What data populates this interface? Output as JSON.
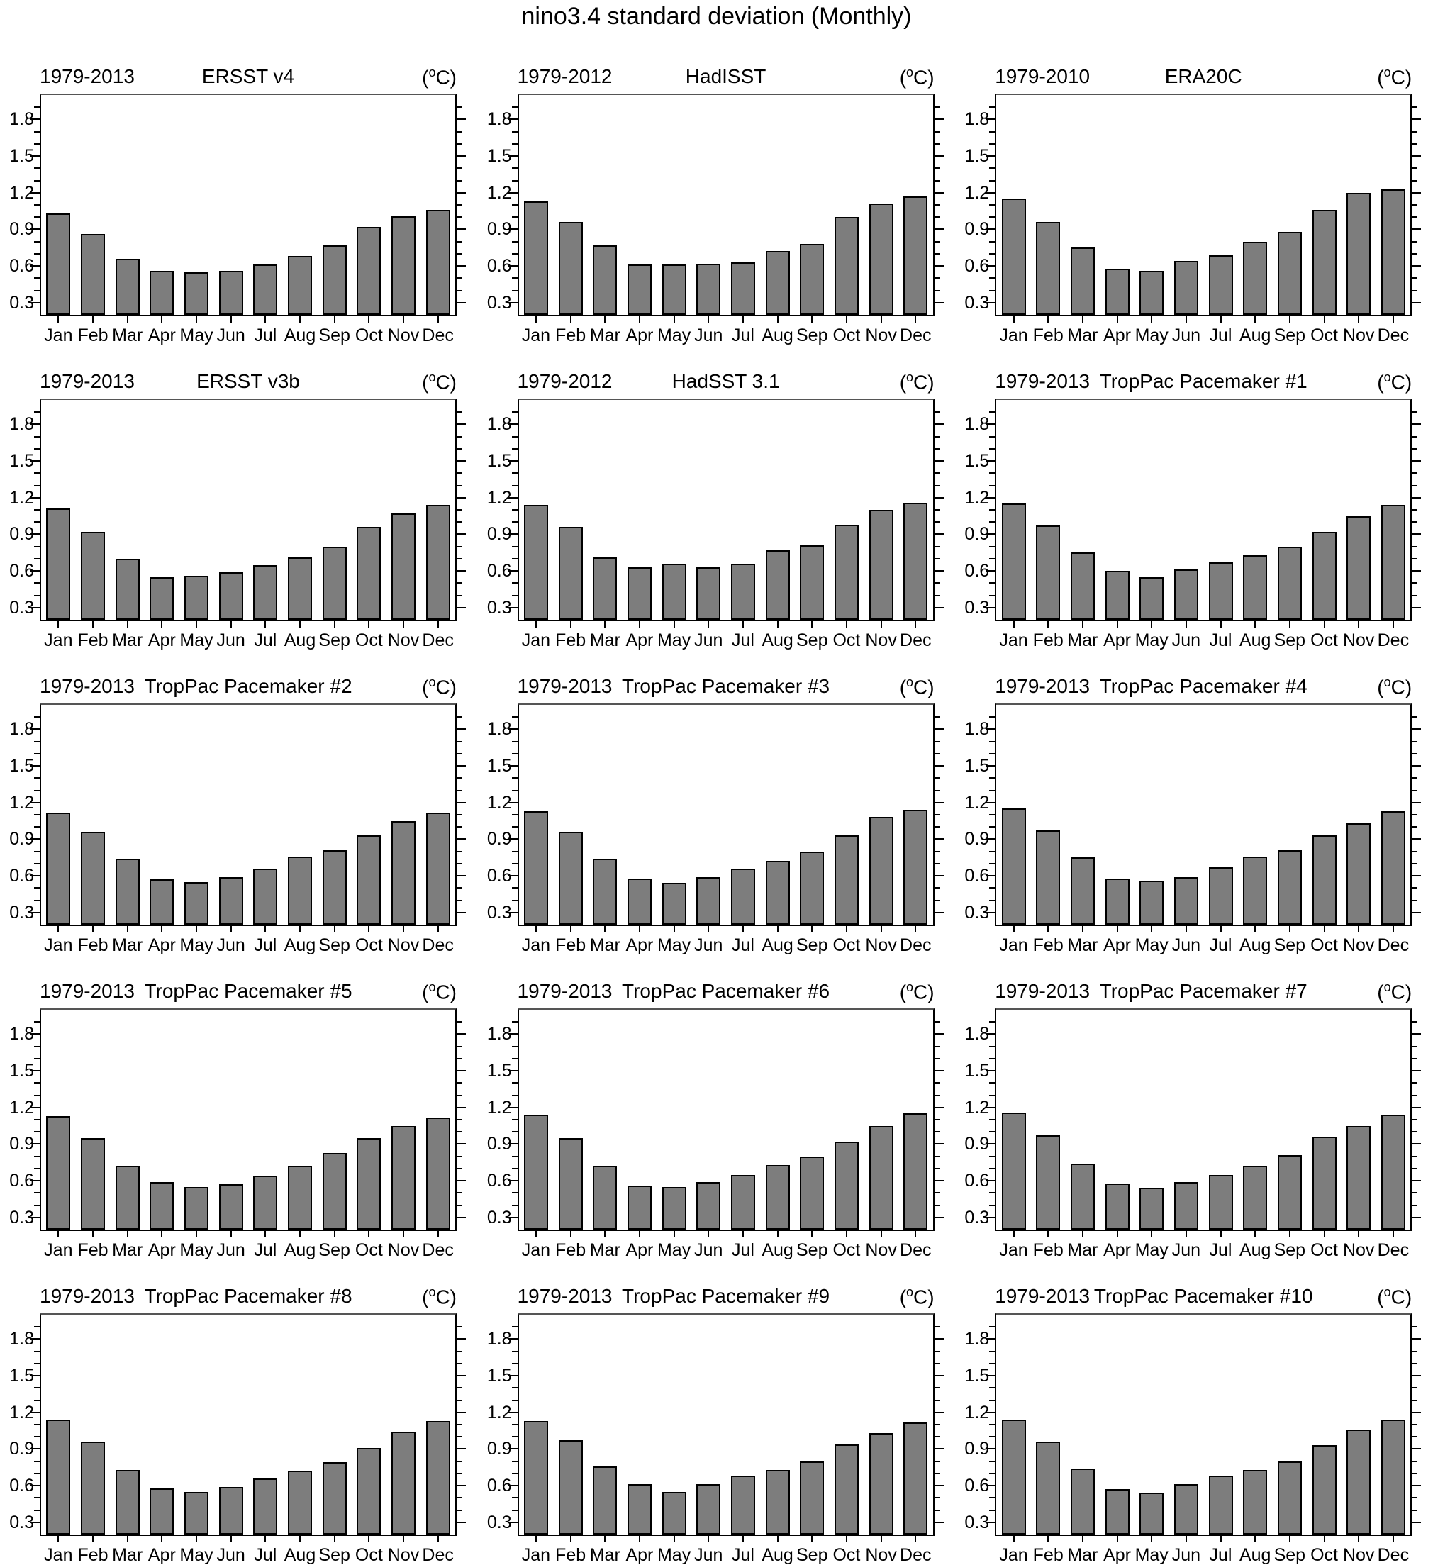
{
  "title": "nino3.4 standard deviation (Monthly)",
  "y_tick_labels": [
    "0.3",
    "0.6",
    "0.9",
    "1.2",
    "1.5",
    "1.8"
  ],
  "bar_color": "#7d7d7d",
  "chart_data": [
    {
      "type": "bar",
      "title": "ERSST v4",
      "period": "1979-2013",
      "units": "(°C)",
      "ylim": [
        0.2,
        2.0
      ],
      "grid": false,
      "categories": [
        "Jan",
        "Feb",
        "Mar",
        "Apr",
        "May",
        "Jun",
        "Jul",
        "Aug",
        "Sep",
        "Oct",
        "Nov",
        "Dec"
      ],
      "values": [
        1.03,
        0.86,
        0.66,
        0.56,
        0.55,
        0.56,
        0.61,
        0.68,
        0.77,
        0.92,
        1.01,
        1.06
      ]
    },
    {
      "type": "bar",
      "title": "HadISST",
      "period": "1979-2012",
      "units": "(°C)",
      "ylim": [
        0.2,
        2.0
      ],
      "grid": false,
      "categories": [
        "Jan",
        "Feb",
        "Mar",
        "Apr",
        "May",
        "Jun",
        "Jul",
        "Aug",
        "Sep",
        "Oct",
        "Nov",
        "Dec"
      ],
      "values": [
        1.13,
        0.96,
        0.77,
        0.61,
        0.61,
        0.62,
        0.63,
        0.72,
        0.78,
        1.0,
        1.11,
        1.17
      ]
    },
    {
      "type": "bar",
      "title": "ERA20C",
      "period": "1979-2010",
      "units": "(°C)",
      "ylim": [
        0.2,
        2.0
      ],
      "grid": false,
      "categories": [
        "Jan",
        "Feb",
        "Mar",
        "Apr",
        "May",
        "Jun",
        "Jul",
        "Aug",
        "Sep",
        "Oct",
        "Nov",
        "Dec"
      ],
      "values": [
        1.15,
        0.96,
        0.75,
        0.58,
        0.56,
        0.64,
        0.69,
        0.8,
        0.88,
        1.06,
        1.2,
        1.23
      ]
    },
    {
      "type": "bar",
      "title": "ERSST v3b",
      "period": "1979-2013",
      "units": "(°C)",
      "ylim": [
        0.2,
        2.0
      ],
      "grid": false,
      "categories": [
        "Jan",
        "Feb",
        "Mar",
        "Apr",
        "May",
        "Jun",
        "Jul",
        "Aug",
        "Sep",
        "Oct",
        "Nov",
        "Dec"
      ],
      "values": [
        1.11,
        0.92,
        0.7,
        0.55,
        0.56,
        0.59,
        0.65,
        0.71,
        0.8,
        0.96,
        1.07,
        1.14
      ]
    },
    {
      "type": "bar",
      "title": "HadSST 3.1",
      "period": "1979-2012",
      "units": "(°C)",
      "ylim": [
        0.2,
        2.0
      ],
      "grid": false,
      "categories": [
        "Jan",
        "Feb",
        "Mar",
        "Apr",
        "May",
        "Jun",
        "Jul",
        "Aug",
        "Sep",
        "Oct",
        "Nov",
        "Dec"
      ],
      "values": [
        1.14,
        0.96,
        0.71,
        0.63,
        0.66,
        0.63,
        0.66,
        0.77,
        0.81,
        0.98,
        1.1,
        1.16
      ]
    },
    {
      "type": "bar",
      "title": "TropPac Pacemaker #1",
      "period": "1979-2013",
      "units": "(°C)",
      "ylim": [
        0.2,
        2.0
      ],
      "grid": false,
      "categories": [
        "Jan",
        "Feb",
        "Mar",
        "Apr",
        "May",
        "Jun",
        "Jul",
        "Aug",
        "Sep",
        "Oct",
        "Nov",
        "Dec"
      ],
      "values": [
        1.15,
        0.97,
        0.75,
        0.6,
        0.55,
        0.61,
        0.67,
        0.73,
        0.8,
        0.92,
        1.05,
        1.14
      ]
    },
    {
      "type": "bar",
      "title": "TropPac Pacemaker #2",
      "period": "1979-2013",
      "units": "(°C)",
      "ylim": [
        0.2,
        2.0
      ],
      "grid": false,
      "categories": [
        "Jan",
        "Feb",
        "Mar",
        "Apr",
        "May",
        "Jun",
        "Jul",
        "Aug",
        "Sep",
        "Oct",
        "Nov",
        "Dec"
      ],
      "values": [
        1.12,
        0.96,
        0.74,
        0.57,
        0.55,
        0.59,
        0.66,
        0.76,
        0.81,
        0.93,
        1.05,
        1.12
      ]
    },
    {
      "type": "bar",
      "title": "TropPac Pacemaker #3",
      "period": "1979-2013",
      "units": "(°C)",
      "ylim": [
        0.2,
        2.0
      ],
      "grid": false,
      "categories": [
        "Jan",
        "Feb",
        "Mar",
        "Apr",
        "May",
        "Jun",
        "Jul",
        "Aug",
        "Sep",
        "Oct",
        "Nov",
        "Dec"
      ],
      "values": [
        1.13,
        0.96,
        0.74,
        0.58,
        0.54,
        0.59,
        0.66,
        0.72,
        0.8,
        0.93,
        1.08,
        1.14
      ]
    },
    {
      "type": "bar",
      "title": "TropPac Pacemaker #4",
      "period": "1979-2013",
      "units": "(°C)",
      "ylim": [
        0.2,
        2.0
      ],
      "grid": false,
      "categories": [
        "Jan",
        "Feb",
        "Mar",
        "Apr",
        "May",
        "Jun",
        "Jul",
        "Aug",
        "Sep",
        "Oct",
        "Nov",
        "Dec"
      ],
      "values": [
        1.15,
        0.97,
        0.75,
        0.58,
        0.56,
        0.59,
        0.67,
        0.76,
        0.81,
        0.93,
        1.03,
        1.13
      ]
    },
    {
      "type": "bar",
      "title": "TropPac Pacemaker #5",
      "period": "1979-2013",
      "units": "(°C)",
      "ylim": [
        0.2,
        2.0
      ],
      "grid": false,
      "categories": [
        "Jan",
        "Feb",
        "Mar",
        "Apr",
        "May",
        "Jun",
        "Jul",
        "Aug",
        "Sep",
        "Oct",
        "Nov",
        "Dec"
      ],
      "values": [
        1.13,
        0.95,
        0.72,
        0.59,
        0.55,
        0.57,
        0.64,
        0.72,
        0.83,
        0.95,
        1.05,
        1.12
      ]
    },
    {
      "type": "bar",
      "title": "TropPac Pacemaker #6",
      "period": "1979-2013",
      "units": "(°C)",
      "ylim": [
        0.2,
        2.0
      ],
      "grid": false,
      "categories": [
        "Jan",
        "Feb",
        "Mar",
        "Apr",
        "May",
        "Jun",
        "Jul",
        "Aug",
        "Sep",
        "Oct",
        "Nov",
        "Dec"
      ],
      "values": [
        1.14,
        0.95,
        0.72,
        0.56,
        0.55,
        0.59,
        0.65,
        0.73,
        0.8,
        0.92,
        1.05,
        1.15
      ]
    },
    {
      "type": "bar",
      "title": "TropPac Pacemaker #7",
      "period": "1979-2013",
      "units": "(°C)",
      "ylim": [
        0.2,
        2.0
      ],
      "grid": false,
      "categories": [
        "Jan",
        "Feb",
        "Mar",
        "Apr",
        "May",
        "Jun",
        "Jul",
        "Aug",
        "Sep",
        "Oct",
        "Nov",
        "Dec"
      ],
      "values": [
        1.16,
        0.97,
        0.74,
        0.58,
        0.54,
        0.59,
        0.65,
        0.72,
        0.81,
        0.96,
        1.05,
        1.14
      ]
    },
    {
      "type": "bar",
      "title": "TropPac Pacemaker #8",
      "period": "1979-2013",
      "units": "(°C)",
      "ylim": [
        0.2,
        2.0
      ],
      "grid": false,
      "categories": [
        "Jan",
        "Feb",
        "Mar",
        "Apr",
        "May",
        "Jun",
        "Jul",
        "Aug",
        "Sep",
        "Oct",
        "Nov",
        "Dec"
      ],
      "values": [
        1.14,
        0.96,
        0.73,
        0.58,
        0.55,
        0.59,
        0.66,
        0.72,
        0.79,
        0.91,
        1.04,
        1.13
      ]
    },
    {
      "type": "bar",
      "title": "TropPac Pacemaker #9",
      "period": "1979-2013",
      "units": "(°C)",
      "ylim": [
        0.2,
        2.0
      ],
      "grid": false,
      "categories": [
        "Jan",
        "Feb",
        "Mar",
        "Apr",
        "May",
        "Jun",
        "Jul",
        "Aug",
        "Sep",
        "Oct",
        "Nov",
        "Dec"
      ],
      "values": [
        1.13,
        0.97,
        0.76,
        0.61,
        0.55,
        0.61,
        0.68,
        0.73,
        0.8,
        0.94,
        1.03,
        1.12
      ]
    },
    {
      "type": "bar",
      "title": "TropPac Pacemaker #10",
      "period": "1979-2013",
      "units": "(°C)",
      "ylim": [
        0.2,
        2.0
      ],
      "grid": false,
      "categories": [
        "Jan",
        "Feb",
        "Mar",
        "Apr",
        "May",
        "Jun",
        "Jul",
        "Aug",
        "Sep",
        "Oct",
        "Nov",
        "Dec"
      ],
      "values": [
        1.14,
        0.96,
        0.74,
        0.57,
        0.54,
        0.61,
        0.68,
        0.73,
        0.8,
        0.93,
        1.06,
        1.14
      ]
    }
  ]
}
